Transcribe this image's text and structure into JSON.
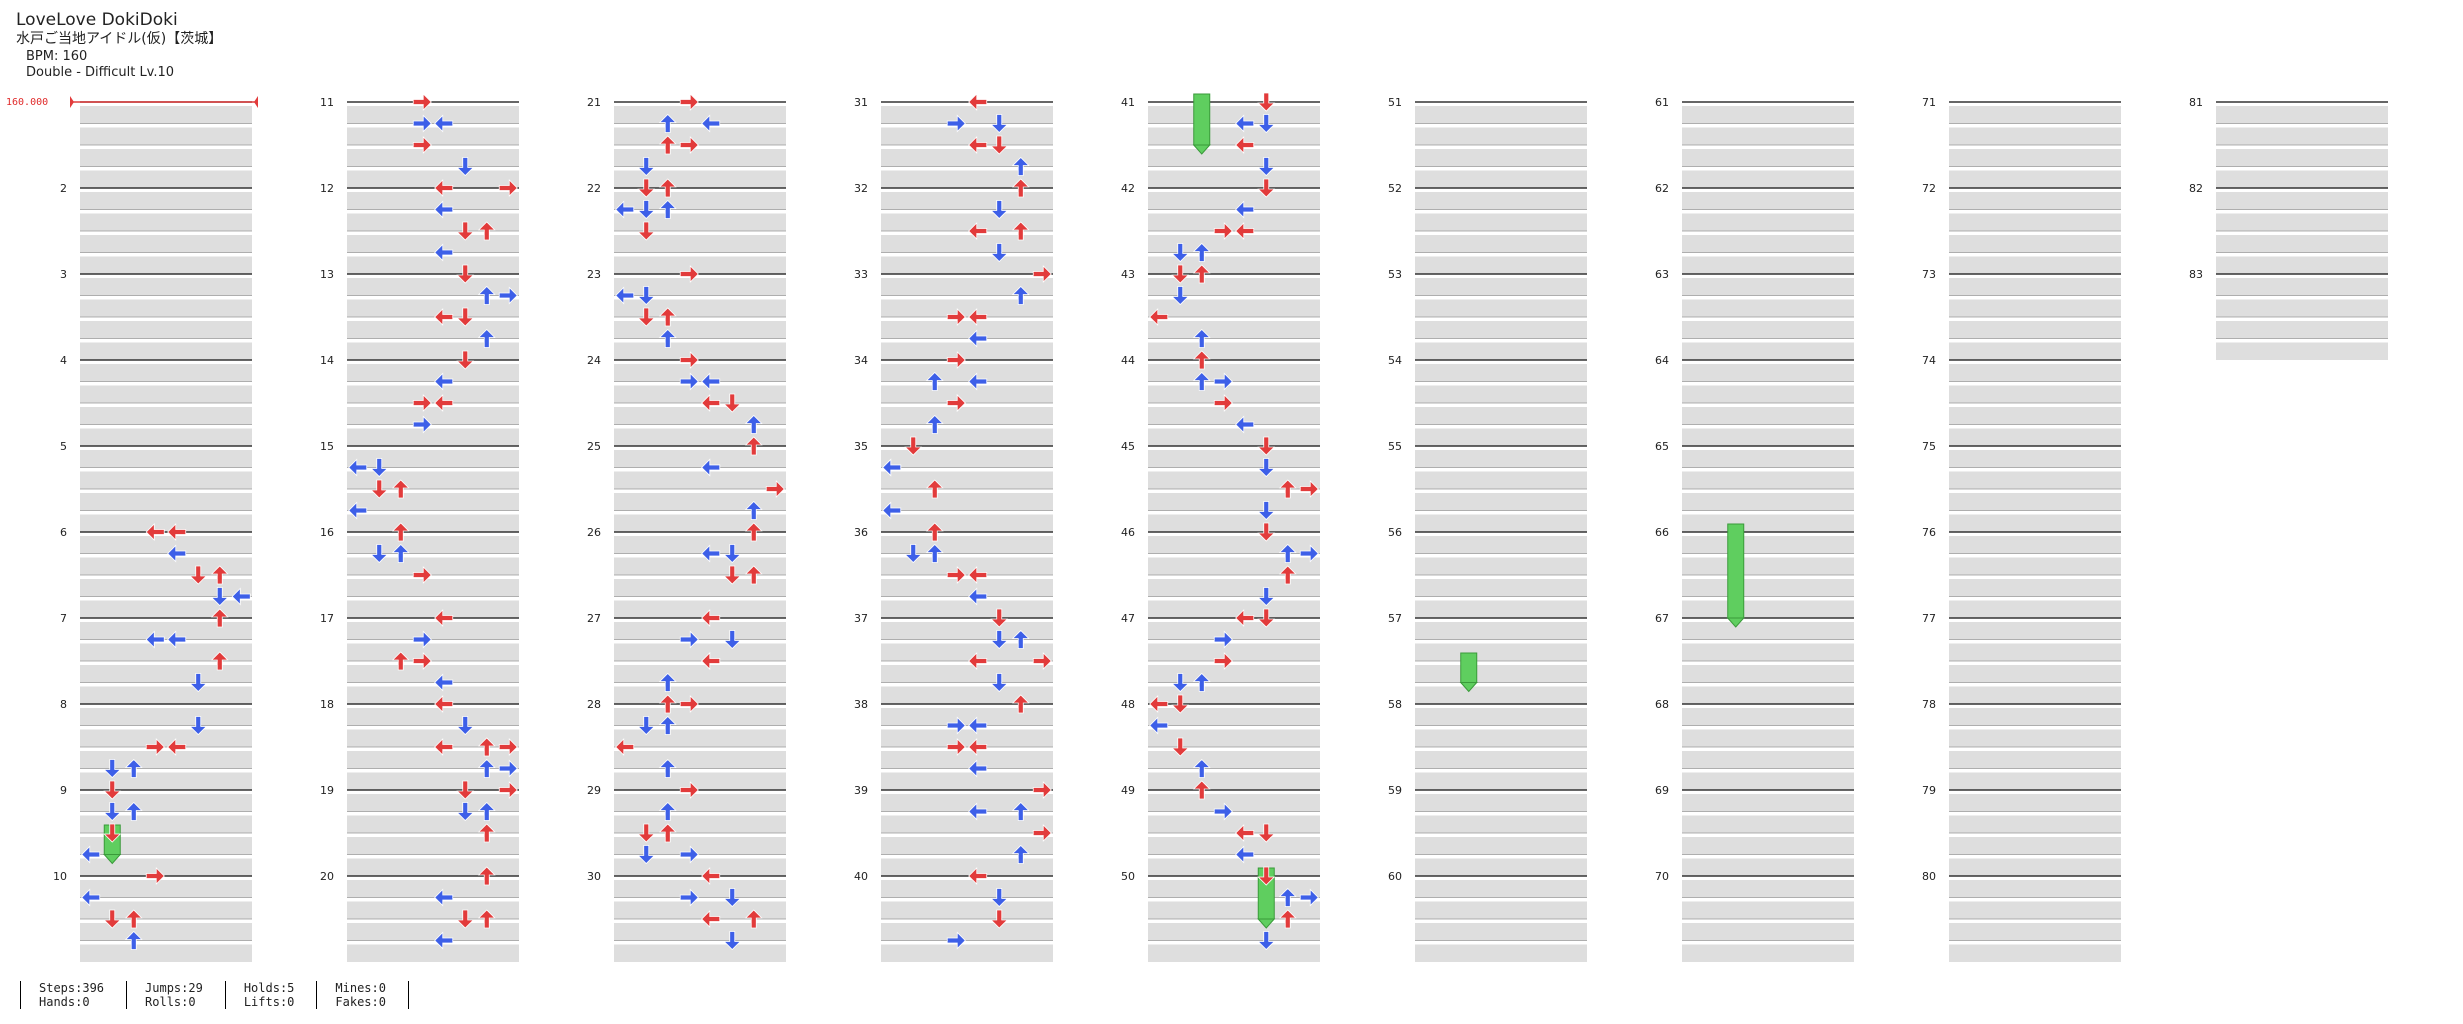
{
  "header": {
    "title": "LoveLove DokiDoki",
    "artist": "水戸ご当地アイドル(仮)【茨城】",
    "bpm": "BPM: 160",
    "chart": "Double - Difficult  Lv.10"
  },
  "bpm_marker": "160.000",
  "columns": [
    {
      "first": 1,
      "last": 10
    },
    {
      "first": 11,
      "last": 20
    },
    {
      "first": 21,
      "last": 30
    },
    {
      "first": 31,
      "last": 40
    },
    {
      "first": 41,
      "last": 50
    },
    {
      "first": 51,
      "last": 60
    },
    {
      "first": 61,
      "last": 70
    },
    {
      "first": 71,
      "last": 80
    },
    {
      "first": 81,
      "last": 83
    }
  ],
  "stats": {
    "steps": "Steps:396",
    "hands": "Hands:0",
    "jumps": "Jumps:29",
    "rolls": "Rolls:0",
    "holds": "Holds:5",
    "lifts": "Lifts:0",
    "mines": "Mines:0",
    "fakes": "Fakes:0"
  },
  "colors": {
    "quarter": "#e23b3b",
    "eighth": "#3d5fe8",
    "hold": "#5fce5f",
    "stripe": "#dedede"
  },
  "chart_data": {
    "type": "table",
    "lanes": [
      "L1",
      "D1",
      "U1",
      "R1",
      "L2",
      "D2",
      "U2",
      "R2"
    ],
    "measures": 83,
    "notes": [
      [
        6,
        0,
        3,
        "L"
      ],
      [
        6,
        0,
        4,
        "L"
      ],
      [
        6,
        1,
        4,
        "L"
      ],
      [
        6,
        2,
        5,
        "D"
      ],
      [
        6,
        2,
        6,
        "U"
      ],
      [
        6,
        3,
        6,
        "D"
      ],
      [
        6,
        3,
        7,
        "L"
      ],
      [
        7,
        0,
        6,
        "U"
      ],
      [
        7,
        1,
        4,
        "L"
      ],
      [
        7,
        1,
        3,
        "L"
      ],
      [
        7,
        2,
        6,
        "U"
      ],
      [
        7,
        3,
        5,
        "D"
      ],
      [
        8,
        1,
        5,
        "D"
      ],
      [
        8,
        2,
        4,
        "L"
      ],
      [
        8,
        2,
        3,
        "R"
      ],
      [
        8,
        3,
        2,
        "U"
      ],
      [
        8,
        3,
        1,
        "D"
      ],
      [
        9,
        0,
        1,
        "D"
      ],
      [
        9,
        1,
        1,
        "D"
      ],
      [
        9,
        1,
        2,
        "U"
      ],
      [
        9,
        2,
        1,
        "D"
      ],
      [
        9,
        3,
        0,
        "L"
      ],
      [
        10,
        0,
        3,
        "R"
      ],
      [
        10,
        1,
        0,
        "L"
      ],
      [
        10,
        2,
        1,
        "D"
      ],
      [
        10,
        2,
        2,
        "U"
      ],
      [
        10,
        3,
        2,
        "U"
      ],
      [
        11,
        0,
        3,
        "R"
      ],
      [
        11,
        1,
        4,
        "L"
      ],
      [
        11,
        1,
        3,
        "R"
      ],
      [
        11,
        2,
        3,
        "R"
      ],
      [
        11,
        3,
        5,
        "D"
      ],
      [
        12,
        0,
        4,
        "L"
      ],
      [
        12,
        0,
        7,
        "R"
      ],
      [
        12,
        1,
        4,
        "L"
      ],
      [
        12,
        2,
        6,
        "U"
      ],
      [
        12,
        2,
        5,
        "D"
      ],
      [
        12,
        3,
        4,
        "L"
      ],
      [
        13,
        0,
        5,
        "D"
      ],
      [
        13,
        1,
        7,
        "R"
      ],
      [
        13,
        1,
        6,
        "U"
      ],
      [
        13,
        2,
        5,
        "D"
      ],
      [
        13,
        2,
        4,
        "L"
      ],
      [
        13,
        3,
        6,
        "U"
      ],
      [
        14,
        0,
        5,
        "D"
      ],
      [
        14,
        1,
        4,
        "L"
      ],
      [
        14,
        2,
        3,
        "R"
      ],
      [
        14,
        2,
        4,
        "L"
      ],
      [
        14,
        3,
        3,
        "R"
      ],
      [
        15,
        1,
        0,
        "L"
      ],
      [
        15,
        1,
        1,
        "D"
      ],
      [
        15,
        2,
        2,
        "U"
      ],
      [
        15,
        2,
        1,
        "D"
      ],
      [
        15,
        3,
        0,
        "L"
      ],
      [
        16,
        0,
        2,
        "U"
      ],
      [
        16,
        1,
        1,
        "D"
      ],
      [
        16,
        1,
        2,
        "U"
      ],
      [
        16,
        2,
        3,
        "R"
      ],
      [
        17,
        0,
        4,
        "L"
      ],
      [
        17,
        1,
        3,
        "R"
      ],
      [
        17,
        2,
        2,
        "U"
      ],
      [
        17,
        2,
        3,
        "R"
      ],
      [
        17,
        3,
        4,
        "L"
      ],
      [
        18,
        0,
        4,
        "L"
      ],
      [
        18,
        1,
        5,
        "D"
      ],
      [
        18,
        2,
        6,
        "U"
      ],
      [
        18,
        2,
        7,
        "R"
      ],
      [
        18,
        2,
        4,
        "L"
      ],
      [
        18,
        3,
        7,
        "R"
      ],
      [
        18,
        3,
        6,
        "U"
      ],
      [
        19,
        0,
        5,
        "D"
      ],
      [
        19,
        0,
        7,
        "R"
      ],
      [
        19,
        1,
        5,
        "D"
      ],
      [
        19,
        1,
        6,
        "U"
      ],
      [
        19,
        2,
        6,
        "U"
      ],
      [
        20,
        0,
        6,
        "U"
      ],
      [
        20,
        1,
        4,
        "L"
      ],
      [
        20,
        2,
        6,
        "U"
      ],
      [
        20,
        2,
        5,
        "D"
      ],
      [
        20,
        3,
        4,
        "L"
      ],
      [
        21,
        0,
        3,
        "R"
      ],
      [
        21,
        1,
        4,
        "L"
      ],
      [
        21,
        1,
        2,
        "U"
      ],
      [
        21,
        2,
        2,
        "U"
      ],
      [
        21,
        2,
        3,
        "R"
      ],
      [
        21,
        3,
        1,
        "D"
      ],
      [
        22,
        0,
        1,
        "D"
      ],
      [
        22,
        0,
        2,
        "U"
      ],
      [
        22,
        1,
        1,
        "D"
      ],
      [
        22,
        1,
        2,
        "U"
      ],
      [
        22,
        1,
        0,
        "L"
      ],
      [
        22,
        2,
        1,
        "D"
      ],
      [
        23,
        0,
        3,
        "R"
      ],
      [
        23,
        1,
        1,
        "D"
      ],
      [
        23,
        1,
        0,
        "L"
      ],
      [
        23,
        2,
        2,
        "U"
      ],
      [
        23,
        2,
        1,
        "D"
      ],
      [
        23,
        3,
        2,
        "U"
      ],
      [
        24,
        0,
        3,
        "R"
      ],
      [
        24,
        1,
        4,
        "L"
      ],
      [
        24,
        1,
        3,
        "R"
      ],
      [
        24,
        2,
        4,
        "L"
      ],
      [
        24,
        2,
        5,
        "D"
      ],
      [
        24,
        3,
        6,
        "U"
      ],
      [
        25,
        0,
        6,
        "U"
      ],
      [
        25,
        1,
        4,
        "L"
      ],
      [
        25,
        1,
        4,
        "L"
      ],
      [
        25,
        2,
        7,
        "R"
      ],
      [
        25,
        3,
        6,
        "U"
      ],
      [
        26,
        0,
        6,
        "U"
      ],
      [
        26,
        1,
        5,
        "D"
      ],
      [
        26,
        1,
        4,
        "L"
      ],
      [
        26,
        2,
        6,
        "U"
      ],
      [
        26,
        2,
        5,
        "D"
      ],
      [
        27,
        0,
        4,
        "L"
      ],
      [
        27,
        1,
        3,
        "R"
      ],
      [
        27,
        1,
        5,
        "D"
      ],
      [
        27,
        2,
        4,
        "L"
      ],
      [
        27,
        2,
        4,
        "L"
      ],
      [
        27,
        3,
        2,
        "U"
      ],
      [
        28,
        0,
        2,
        "U"
      ],
      [
        28,
        0,
        3,
        "R"
      ],
      [
        28,
        1,
        2,
        "U"
      ],
      [
        28,
        1,
        1,
        "D"
      ],
      [
        28,
        2,
        0,
        "L"
      ],
      [
        28,
        3,
        2,
        "U"
      ],
      [
        29,
        0,
        3,
        "R"
      ],
      [
        29,
        1,
        2,
        "U"
      ],
      [
        29,
        2,
        1,
        "D"
      ],
      [
        29,
        2,
        2,
        "U"
      ],
      [
        29,
        3,
        1,
        "D"
      ],
      [
        29,
        3,
        3,
        "R"
      ],
      [
        30,
        0,
        4,
        "L"
      ],
      [
        30,
        1,
        3,
        "R"
      ],
      [
        30,
        1,
        5,
        "D"
      ],
      [
        30,
        2,
        4,
        "L"
      ],
      [
        30,
        2,
        6,
        "U"
      ],
      [
        30,
        3,
        5,
        "D"
      ],
      [
        31,
        0,
        4,
        "L"
      ],
      [
        31,
        1,
        5,
        "D"
      ],
      [
        31,
        1,
        3,
        "R"
      ],
      [
        31,
        2,
        4,
        "L"
      ],
      [
        31,
        2,
        5,
        "D"
      ],
      [
        31,
        3,
        6,
        "U"
      ],
      [
        32,
        0,
        6,
        "U"
      ],
      [
        32,
        1,
        5,
        "D"
      ],
      [
        32,
        1,
        5,
        "D"
      ],
      [
        32,
        2,
        6,
        "U"
      ],
      [
        32,
        2,
        4,
        "L"
      ],
      [
        32,
        3,
        5,
        "D"
      ],
      [
        33,
        0,
        7,
        "R"
      ],
      [
        33,
        1,
        6,
        "U"
      ],
      [
        33,
        2,
        4,
        "L"
      ],
      [
        33,
        2,
        3,
        "R"
      ],
      [
        33,
        3,
        4,
        "L"
      ],
      [
        34,
        0,
        3,
        "R"
      ],
      [
        34,
        1,
        4,
        "L"
      ],
      [
        34,
        1,
        2,
        "U"
      ],
      [
        34,
        2,
        3,
        "R"
      ],
      [
        34,
        2,
        3,
        "R"
      ],
      [
        34,
        3,
        2,
        "U"
      ],
      [
        35,
        0,
        1,
        "D"
      ],
      [
        35,
        1,
        0,
        "L"
      ],
      [
        35,
        1,
        0,
        "L"
      ],
      [
        35,
        2,
        2,
        "U"
      ],
      [
        35,
        3,
        0,
        "L"
      ],
      [
        36,
        0,
        2,
        "U"
      ],
      [
        36,
        1,
        1,
        "D"
      ],
      [
        36,
        1,
        2,
        "U"
      ],
      [
        36,
        2,
        3,
        "R"
      ],
      [
        36,
        2,
        4,
        "L"
      ],
      [
        36,
        3,
        4,
        "L"
      ],
      [
        37,
        0,
        5,
        "D"
      ],
      [
        37,
        1,
        5,
        "D"
      ],
      [
        37,
        1,
        6,
        "U"
      ],
      [
        37,
        2,
        4,
        "L"
      ],
      [
        37,
        2,
        7,
        "R"
      ],
      [
        37,
        3,
        5,
        "D"
      ],
      [
        38,
        0,
        6,
        "U"
      ],
      [
        38,
        1,
        4,
        "L"
      ],
      [
        38,
        1,
        3,
        "R"
      ],
      [
        38,
        2,
        3,
        "R"
      ],
      [
        38,
        2,
        4,
        "L"
      ],
      [
        38,
        3,
        4,
        "L"
      ],
      [
        39,
        0,
        7,
        "R"
      ],
      [
        39,
        1,
        6,
        "U"
      ],
      [
        39,
        1,
        4,
        "L"
      ],
      [
        39,
        2,
        7,
        "R"
      ],
      [
        39,
        3,
        6,
        "U"
      ],
      [
        40,
        0,
        4,
        "L"
      ],
      [
        40,
        1,
        5,
        "D"
      ],
      [
        40,
        2,
        5,
        "D"
      ],
      [
        40,
        3,
        3,
        "R"
      ],
      [
        41,
        0,
        5,
        "D"
      ],
      [
        41,
        0,
        5,
        "D"
      ],
      [
        41,
        1,
        5,
        "D"
      ],
      [
        41,
        1,
        4,
        "L"
      ],
      [
        41,
        2,
        4,
        "L"
      ],
      [
        41,
        3,
        5,
        "D"
      ],
      [
        42,
        0,
        5,
        "D"
      ],
      [
        42,
        1,
        4,
        "L"
      ],
      [
        42,
        2,
        4,
        "L"
      ],
      [
        42,
        2,
        3,
        "R"
      ],
      [
        42,
        3,
        2,
        "U"
      ],
      [
        42,
        3,
        1,
        "D"
      ],
      [
        43,
        0,
        2,
        "U"
      ],
      [
        43,
        0,
        1,
        "D"
      ],
      [
        43,
        1,
        1,
        "D"
      ],
      [
        43,
        2,
        0,
        "L"
      ],
      [
        43,
        3,
        2,
        "U"
      ],
      [
        44,
        0,
        2,
        "U"
      ],
      [
        44,
        1,
        3,
        "R"
      ],
      [
        44,
        1,
        2,
        "U"
      ],
      [
        44,
        2,
        3,
        "R"
      ],
      [
        44,
        3,
        4,
        "L"
      ],
      [
        45,
        0,
        5,
        "D"
      ],
      [
        45,
        1,
        5,
        "D"
      ],
      [
        45,
        2,
        6,
        "U"
      ],
      [
        45,
        2,
        7,
        "R"
      ],
      [
        45,
        3,
        5,
        "D"
      ],
      [
        46,
        0,
        5,
        "D"
      ],
      [
        46,
        1,
        6,
        "U"
      ],
      [
        46,
        1,
        7,
        "R"
      ],
      [
        46,
        2,
        6,
        "U"
      ],
      [
        46,
        3,
        5,
        "D"
      ],
      [
        47,
        0,
        4,
        "L"
      ],
      [
        47,
        0,
        5,
        "D"
      ],
      [
        47,
        1,
        3,
        "R"
      ],
      [
        47,
        2,
        3,
        "R"
      ],
      [
        47,
        3,
        2,
        "U"
      ],
      [
        47,
        3,
        1,
        "D"
      ],
      [
        48,
        0,
        1,
        "D"
      ],
      [
        48,
        0,
        0,
        "L"
      ],
      [
        48,
        1,
        0,
        "L"
      ],
      [
        48,
        2,
        1,
        "D"
      ],
      [
        48,
        3,
        2,
        "U"
      ],
      [
        49,
        0,
        2,
        "U"
      ],
      [
        49,
        1,
        3,
        "R"
      ],
      [
        49,
        2,
        4,
        "L"
      ],
      [
        49,
        2,
        5,
        "D"
      ],
      [
        49,
        3,
        4,
        "L"
      ],
      [
        50,
        0,
        5,
        "D"
      ],
      [
        50,
        1,
        6,
        "U"
      ],
      [
        50,
        1,
        7,
        "R"
      ],
      [
        50,
        2,
        6,
        "U"
      ],
      [
        50,
        3,
        5,
        "D"
      ]
    ],
    "holds": [
      [
        9,
        2,
        1,
        1
      ],
      [
        41,
        0,
        2,
        2
      ],
      [
        50,
        0,
        5,
        2
      ],
      [
        57,
        2,
        2,
        1
      ],
      [
        66,
        0,
        2,
        4
      ]
    ]
  }
}
